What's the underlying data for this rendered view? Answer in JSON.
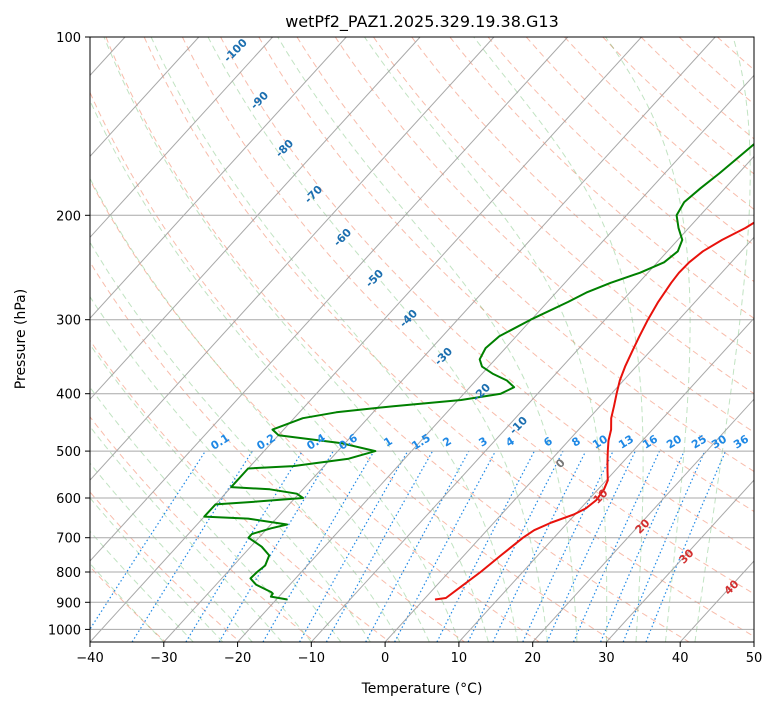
{
  "chart_data": {
    "type": "skew-t",
    "title": "wetPf2_PAZ1.2025.329.19.38.G13",
    "xlabel": "Temperature (°C)",
    "ylabel": "Pressure (hPa)",
    "xlim": [
      -40,
      50
    ],
    "ylim": [
      1050,
      100
    ],
    "y_scale": "log",
    "grid": true,
    "x_ticks": [
      -40,
      -30,
      -20,
      -10,
      0,
      10,
      20,
      30,
      40,
      50
    ],
    "x_tick_labels": [
      "−40",
      "−30",
      "−20",
      "−10",
      "0",
      "10",
      "20",
      "30",
      "40",
      "50"
    ],
    "p_ticks": [
      1000,
      900,
      800,
      700,
      600,
      500,
      400,
      300,
      200,
      100
    ],
    "mixing_ratio_labels": [
      "0.1",
      "0.2",
      "0.4",
      "0.6",
      "1",
      "1.5",
      "2",
      "3",
      "4",
      "6",
      "8",
      "10",
      "13",
      "16",
      "20",
      "25",
      "30",
      "36"
    ],
    "isotherm_labels": [
      "-100",
      "-90",
      "-80",
      "-70",
      "-60",
      "-50",
      "-40",
      "-30",
      "-20",
      "-10"
    ],
    "moist_adiabat_labels": [
      "0",
      "10",
      "20",
      "30",
      "40"
    ],
    "series": [
      {
        "color": "#e8120c",
        "points": [
          {
            "p": 890,
            "t": 1.5
          },
          {
            "p": 885,
            "t": 2.8
          },
          {
            "p": 850,
            "t": 3.4
          },
          {
            "p": 800,
            "t": 4.3
          },
          {
            "p": 750,
            "t": 5.0
          },
          {
            "p": 700,
            "t": 5.8
          },
          {
            "p": 680,
            "t": 6.4
          },
          {
            "p": 660,
            "t": 7.8
          },
          {
            "p": 640,
            "t": 9.8
          },
          {
            "p": 625,
            "t": 10.7
          },
          {
            "p": 605,
            "t": 11.1
          },
          {
            "p": 580,
            "t": 10.8
          },
          {
            "p": 560,
            "t": 10.2
          },
          {
            "p": 540,
            "t": 9.0
          },
          {
            "p": 520,
            "t": 7.8
          },
          {
            "p": 500,
            "t": 6.6
          },
          {
            "p": 480,
            "t": 5.4
          },
          {
            "p": 460,
            "t": 4.4
          },
          {
            "p": 440,
            "t": 3.0
          },
          {
            "p": 420,
            "t": 1.9
          },
          {
            "p": 400,
            "t": 0.7
          },
          {
            "p": 380,
            "t": -0.5
          },
          {
            "p": 360,
            "t": -1.5
          },
          {
            "p": 340,
            "t": -2.4
          },
          {
            "p": 320,
            "t": -3.3
          },
          {
            "p": 300,
            "t": -4.2
          },
          {
            "p": 280,
            "t": -5.0
          },
          {
            "p": 260,
            "t": -5.6
          },
          {
            "p": 250,
            "t": -5.8
          },
          {
            "p": 240,
            "t": -5.7
          },
          {
            "p": 230,
            "t": -5.2
          },
          {
            "p": 220,
            "t": -4.0
          },
          {
            "p": 210,
            "t": -2.3
          },
          {
            "p": 200,
            "t": -1.1
          },
          {
            "p": 190,
            "t": -0.6
          },
          {
            "p": 180,
            "t": -0.5
          },
          {
            "p": 170,
            "t": -0.4
          },
          {
            "p": 160,
            "t": -0.6
          },
          {
            "p": 150,
            "t": -1.0
          },
          {
            "p": 140,
            "t": -1.3
          },
          {
            "p": 130,
            "t": -1.3
          },
          {
            "p": 120,
            "t": -1.8
          },
          {
            "p": 110,
            "t": -3.1
          },
          {
            "p": 100,
            "t": -4.0
          }
        ]
      },
      {
        "color": "#008000",
        "points": [
          {
            "p": 890,
            "t": -18.5
          },
          {
            "p": 880,
            "t": -21.1
          },
          {
            "p": 870,
            "t": -21.2
          },
          {
            "p": 865,
            "t": -21.6
          },
          {
            "p": 840,
            "t": -24.6
          },
          {
            "p": 820,
            "t": -26.1
          },
          {
            "p": 800,
            "t": -26.0
          },
          {
            "p": 780,
            "t": -25.7
          },
          {
            "p": 750,
            "t": -26.4
          },
          {
            "p": 725,
            "t": -28.5
          },
          {
            "p": 700,
            "t": -31.4
          },
          {
            "p": 690,
            "t": -31.4
          },
          {
            "p": 675,
            "t": -29.5
          },
          {
            "p": 665,
            "t": -27.8
          },
          {
            "p": 650,
            "t": -33.8
          },
          {
            "p": 645,
            "t": -40.0
          },
          {
            "p": 615,
            "t": -40.0
          },
          {
            "p": 610,
            "t": -35.9
          },
          {
            "p": 600,
            "t": -28.9
          },
          {
            "p": 590,
            "t": -30.3
          },
          {
            "p": 580,
            "t": -34.5
          },
          {
            "p": 575,
            "t": -40.0
          },
          {
            "p": 535,
            "t": -40.0
          },
          {
            "p": 530,
            "t": -34.2
          },
          {
            "p": 515,
            "t": -27.6
          },
          {
            "p": 500,
            "t": -24.9
          },
          {
            "p": 485,
            "t": -30.4
          },
          {
            "p": 470,
            "t": -40.0
          },
          {
            "p": 460,
            "t": -41.5
          },
          {
            "p": 440,
            "t": -38.8
          },
          {
            "p": 430,
            "t": -35.0
          },
          {
            "p": 420,
            "t": -28.0
          },
          {
            "p": 410,
            "t": -19.6
          },
          {
            "p": 400,
            "t": -15.0
          },
          {
            "p": 390,
            "t": -14.0
          },
          {
            "p": 380,
            "t": -15.8
          },
          {
            "p": 370,
            "t": -18.6
          },
          {
            "p": 360,
            "t": -20.9
          },
          {
            "p": 350,
            "t": -22.1
          },
          {
            "p": 335,
            "t": -22.7
          },
          {
            "p": 320,
            "t": -22.3
          },
          {
            "p": 300,
            "t": -20.1
          },
          {
            "p": 280,
            "t": -17.2
          },
          {
            "p": 270,
            "t": -15.9
          },
          {
            "p": 260,
            "t": -13.8
          },
          {
            "p": 250,
            "t": -11.1
          },
          {
            "p": 240,
            "t": -9.1
          },
          {
            "p": 230,
            "t": -8.6
          },
          {
            "p": 220,
            "t": -9.4
          },
          {
            "p": 210,
            "t": -11.4
          },
          {
            "p": 200,
            "t": -13.2
          },
          {
            "p": 190,
            "t": -13.8
          },
          {
            "p": 180,
            "t": -13.3
          },
          {
            "p": 170,
            "t": -12.6
          },
          {
            "p": 160,
            "t": -12.0
          },
          {
            "p": 150,
            "t": -11.4
          },
          {
            "p": 140,
            "t": -10.3
          },
          {
            "p": 130,
            "t": -8.4
          },
          {
            "p": 120,
            "t": -5.7
          },
          {
            "p": 110,
            "t": -3.0
          },
          {
            "p": 100,
            "t": -1.9
          }
        ]
      }
    ]
  }
}
